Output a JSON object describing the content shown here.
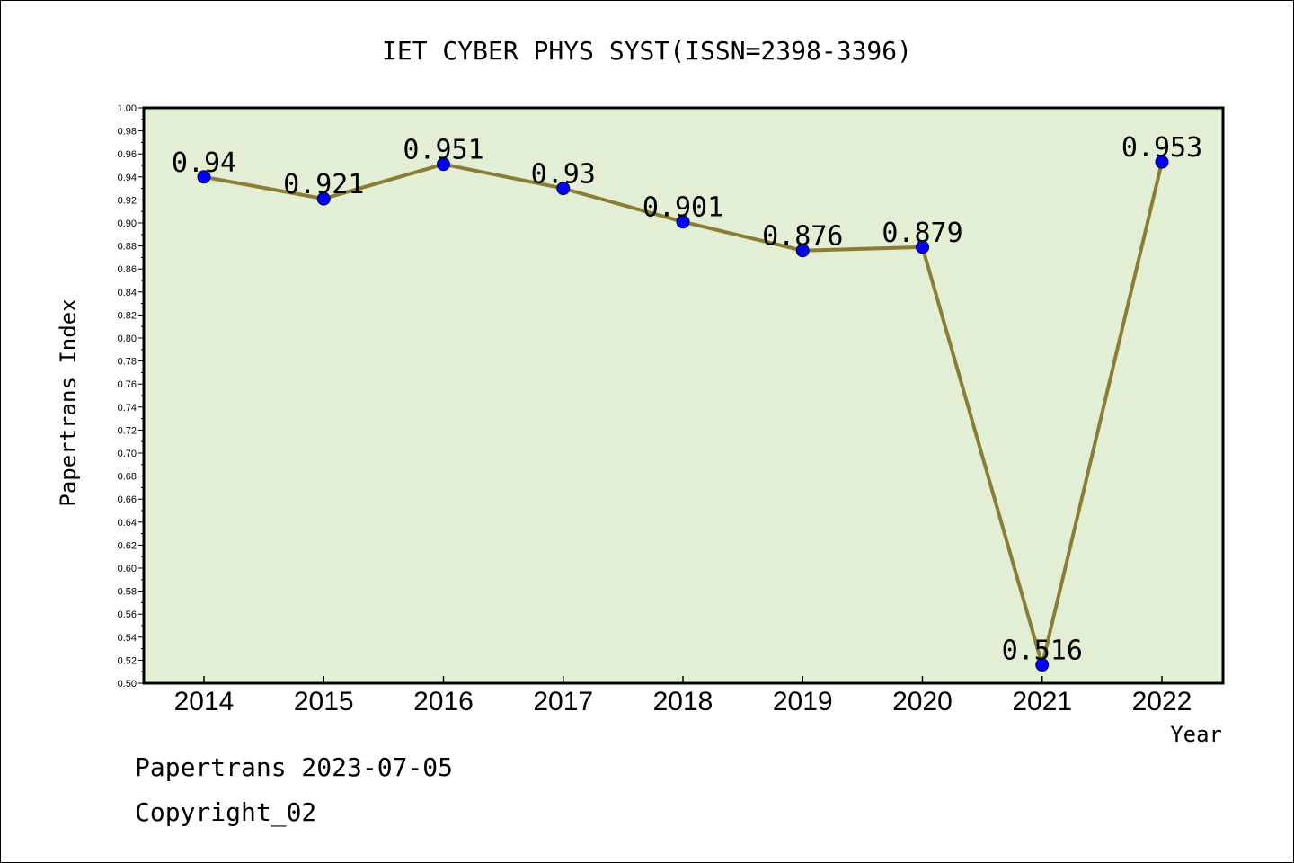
{
  "chart_data": {
    "type": "line",
    "title": "IET CYBER PHYS SYST(ISSN=2398-3396)",
    "xlabel": "Year",
    "ylabel": "Papertrans Index",
    "categories": [
      "2014",
      "2015",
      "2016",
      "2017",
      "2018",
      "2019",
      "2020",
      "2021",
      "2022"
    ],
    "series": [
      {
        "values": [
          0.94,
          0.921,
          0.951,
          0.93,
          0.901,
          0.876,
          0.879,
          0.516,
          0.953
        ],
        "labels": [
          "0.94",
          "0.921",
          "0.951",
          "0.93",
          "0.901",
          "0.876",
          "0.879",
          "0.516",
          "0.953"
        ]
      }
    ],
    "ylim": [
      0.5,
      1.0
    ],
    "yticks": [
      "0.50",
      "0.52",
      "0.54",
      "0.56",
      "0.58",
      "0.60",
      "0.62",
      "0.64",
      "0.66",
      "0.68",
      "0.70",
      "0.72",
      "0.74",
      "0.76",
      "0.78",
      "0.80",
      "0.82",
      "0.84",
      "0.86",
      "0.88",
      "0.90",
      "0.92",
      "0.94",
      "0.96",
      "0.98",
      "1.00"
    ],
    "grid": false,
    "colors": {
      "plot_background": "#e2efd5",
      "line": "#8b7d35",
      "marker": "#0000ff"
    }
  },
  "footer": {
    "line1": "Papertrans 2023-07-05",
    "line2": "Copyright_02"
  }
}
